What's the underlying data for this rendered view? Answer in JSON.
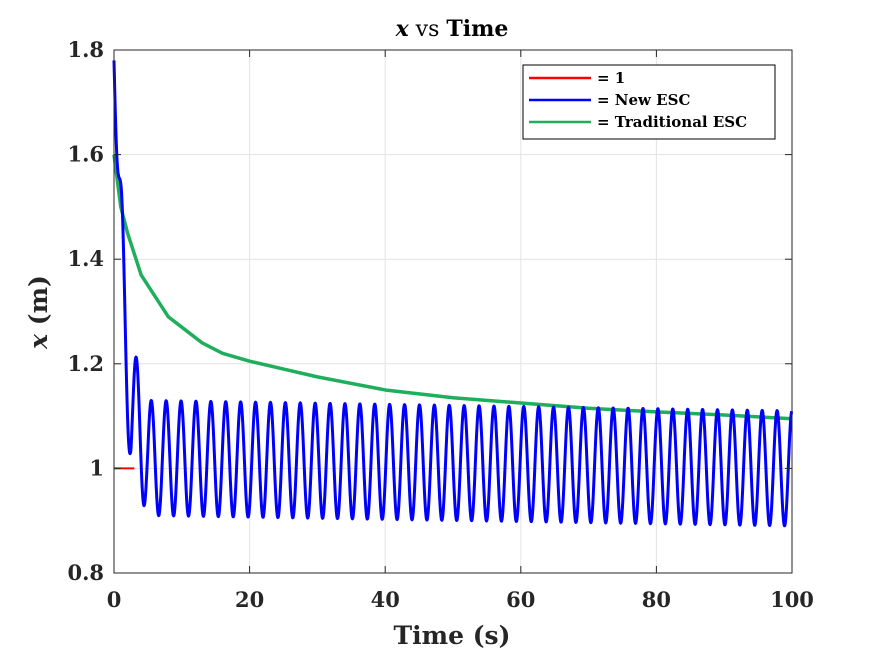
{
  "chart_data": {
    "type": "line",
    "title": {
      "var": "x",
      "mid": " vs ",
      "rest": "Time"
    },
    "xlabel": "Time (s)",
    "ylabel": {
      "var": "x",
      "rest": " (m)"
    },
    "xlim": [
      0,
      100
    ],
    "ylim": [
      0.8,
      1.8
    ],
    "xticks": [
      0,
      20,
      40,
      60,
      80,
      100
    ],
    "yticks": [
      0.8,
      1,
      1.2,
      1.4,
      1.6,
      1.8
    ],
    "xtick_labels": [
      "0",
      "20",
      "40",
      "60",
      "80",
      "100"
    ],
    "ytick_labels": [
      "0.8",
      "1",
      "1.2",
      "1.4",
      "1.6",
      "1.8"
    ],
    "grid": true,
    "legend_position": "top-right",
    "series": [
      {
        "name": "= 1",
        "color": "#ff0000",
        "x": [
          0,
          3
        ],
        "y": [
          1,
          1
        ]
      },
      {
        "name": "= New ESC",
        "color": "#0000ff",
        "oscillation": {
          "frequency_hz": 0.455,
          "center": [
            [
              0,
              1.78
            ],
            [
              1,
              1.4
            ],
            [
              2.5,
              1.12
            ],
            [
              5,
              1.02
            ],
            [
              100,
              1.0
            ]
          ],
          "amplitude": [
            [
              0,
              0.0
            ],
            [
              1,
              0.15
            ],
            [
              2.5,
              0.13
            ],
            [
              5,
              0.11
            ],
            [
              100,
              0.11
            ]
          ]
        }
      },
      {
        "name": "= Traditional ESC",
        "color": "#1fae5c",
        "x": [
          0,
          1,
          2,
          4,
          6,
          8,
          10,
          13,
          16,
          20,
          25,
          30,
          40,
          50,
          60,
          70,
          80,
          90,
          100
        ],
        "y": [
          1.6,
          1.5,
          1.45,
          1.37,
          1.33,
          1.29,
          1.27,
          1.24,
          1.22,
          1.205,
          1.19,
          1.175,
          1.15,
          1.135,
          1.125,
          1.115,
          1.108,
          1.102,
          1.095
        ]
      }
    ]
  }
}
